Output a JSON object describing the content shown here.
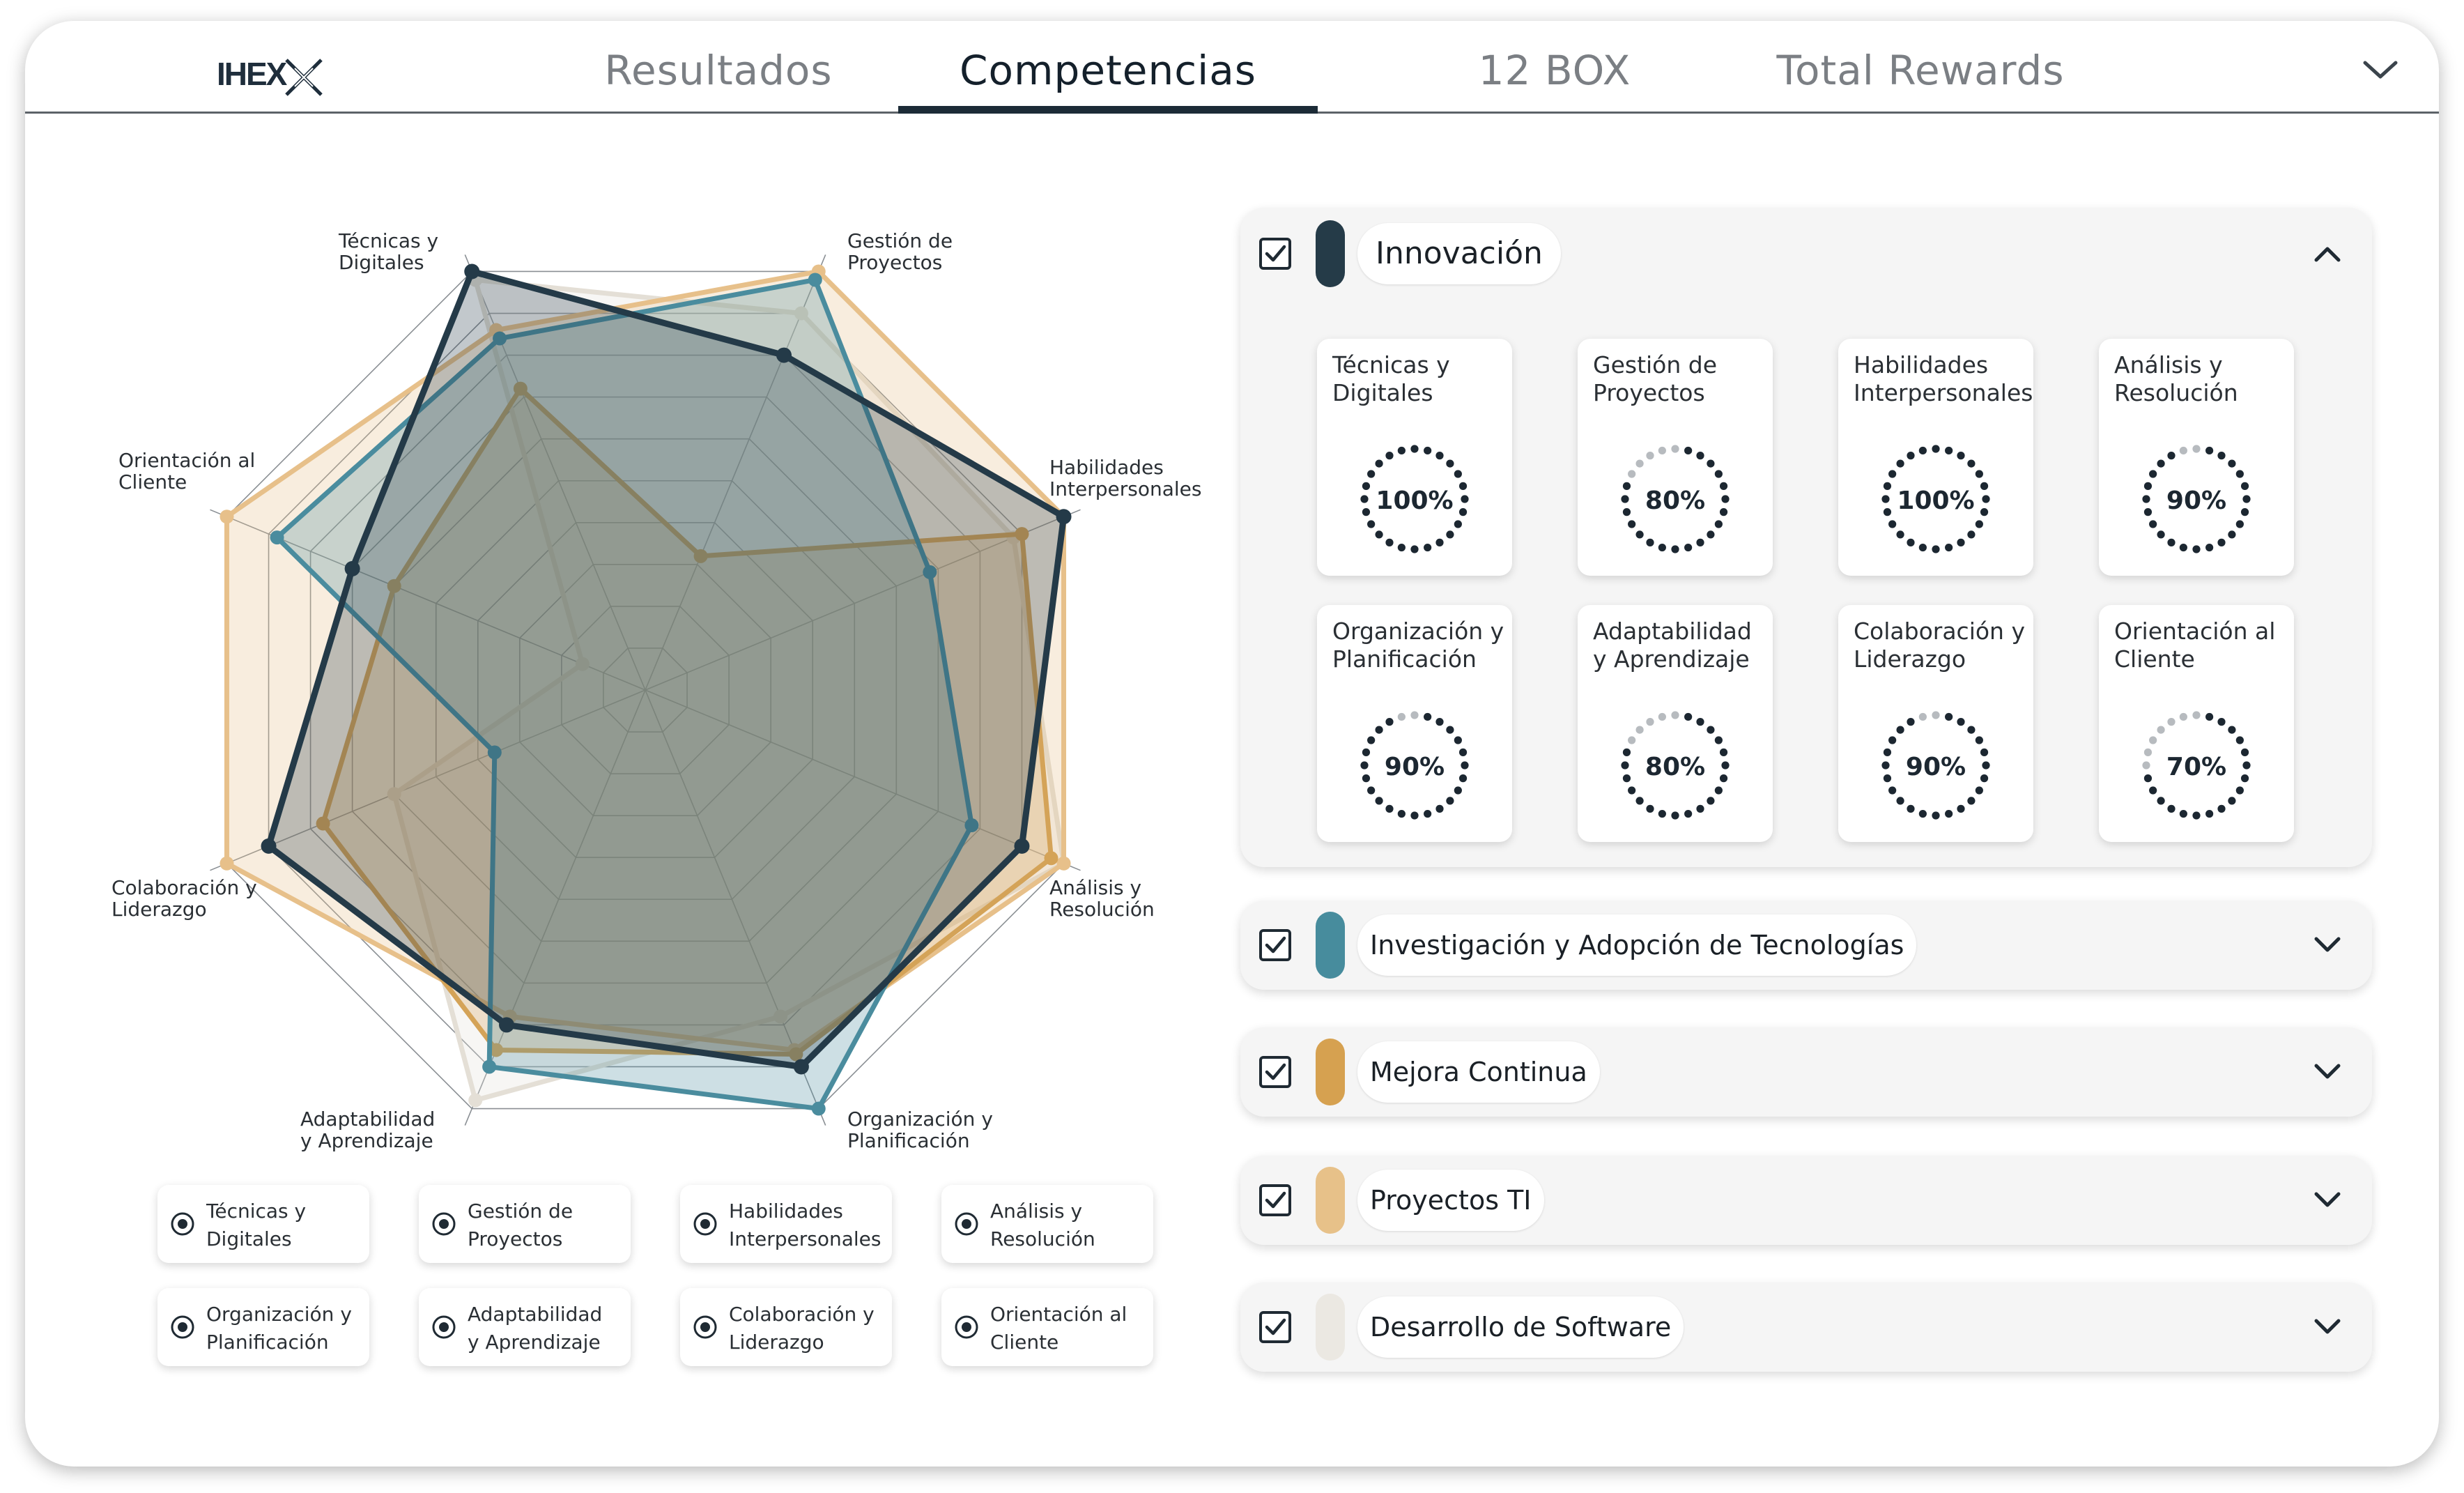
{
  "nav": {
    "logo_text": "IHEX",
    "tabs": [
      {
        "label": "Resultados",
        "active": false
      },
      {
        "label": "Competencias",
        "active": true
      },
      {
        "label": "12 BOX",
        "active": false
      },
      {
        "label": "Total Rewards",
        "active": false
      }
    ]
  },
  "chart_data": {
    "type": "radar",
    "axes": [
      "Técnicas y\nDigitales",
      "Gestión de\nProyectos",
      "Habilidades\nInterpersonales",
      "Análisis y\nResolución",
      "Organización y\nPlanificación",
      "Adaptabilidad\ny Aprendizaje",
      "Colaboración y\nLiderazgo",
      "Orientación al\nCliente"
    ],
    "range": [
      0,
      100
    ],
    "rings": 10,
    "series": [
      {
        "name": "Desarrollo de Software",
        "color": "#e4dfd6",
        "values": [
          98,
          90,
          88,
          100,
          78,
          98,
          60,
          15
        ]
      },
      {
        "name": "Proyectos TI",
        "color": "#e7c08a",
        "values": [
          86,
          100,
          100,
          100,
          86,
          78,
          100,
          100
        ]
      },
      {
        "name": "Mejora Continua",
        "color": "#d4a358",
        "values": [
          72,
          32,
          90,
          97,
          87,
          86,
          77,
          60
        ]
      },
      {
        "name": "Investigación y Adopción de Tecnologías",
        "color": "#4a8c9e",
        "values": [
          84,
          98,
          68,
          78,
          100,
          90,
          36,
          88
        ]
      },
      {
        "name": "Innovación",
        "color": "#243a48",
        "values": [
          100,
          80,
          100,
          90,
          90,
          80,
          90,
          70
        ]
      }
    ]
  },
  "legend_chips": [
    "Técnicas y\nDigitales",
    "Gestión de\nProyectos",
    "Habilidades\nInterpersonales",
    "Análisis y\nResolución",
    "Organización y\nPlanificación",
    "Adaptabilidad\ny Aprendizaje",
    "Colaboración y\nLiderazgo",
    "Orientación al\nCliente"
  ],
  "panels": [
    {
      "title": "Innovación",
      "color": "#253b48",
      "expanded": true,
      "checked": true,
      "cards": [
        {
          "label": "Técnicas y\nDigitales",
          "value": "100%",
          "pct": 100
        },
        {
          "label": "Gestión de\nProyectos",
          "value": "80%",
          "pct": 80
        },
        {
          "label": "Habilidades\nInterpersonales",
          "value": "100%",
          "pct": 100
        },
        {
          "label": "Análisis y\nResolución",
          "value": "90%",
          "pct": 90
        },
        {
          "label": "Organización y\nPlanificación",
          "value": "90%",
          "pct": 90
        },
        {
          "label": "Adaptabilidad\ny Aprendizaje",
          "value": "80%",
          "pct": 80
        },
        {
          "label": "Colaboración y\nLiderazgo",
          "value": "90%",
          "pct": 90
        },
        {
          "label": "Orientación al\nCliente",
          "value": "70%",
          "pct": 70
        }
      ]
    },
    {
      "title": "Investigación y Adopción de Tecnologías",
      "color": "#478c9d",
      "expanded": false,
      "checked": true
    },
    {
      "title": "Mejora Continua",
      "color": "#d6a150",
      "expanded": false,
      "checked": true
    },
    {
      "title": "Proyectos TI",
      "color": "#e7c189",
      "expanded": false,
      "checked": true
    },
    {
      "title": "Desarrollo de Software",
      "color": "#ebe8e2",
      "expanded": false,
      "checked": true
    }
  ]
}
